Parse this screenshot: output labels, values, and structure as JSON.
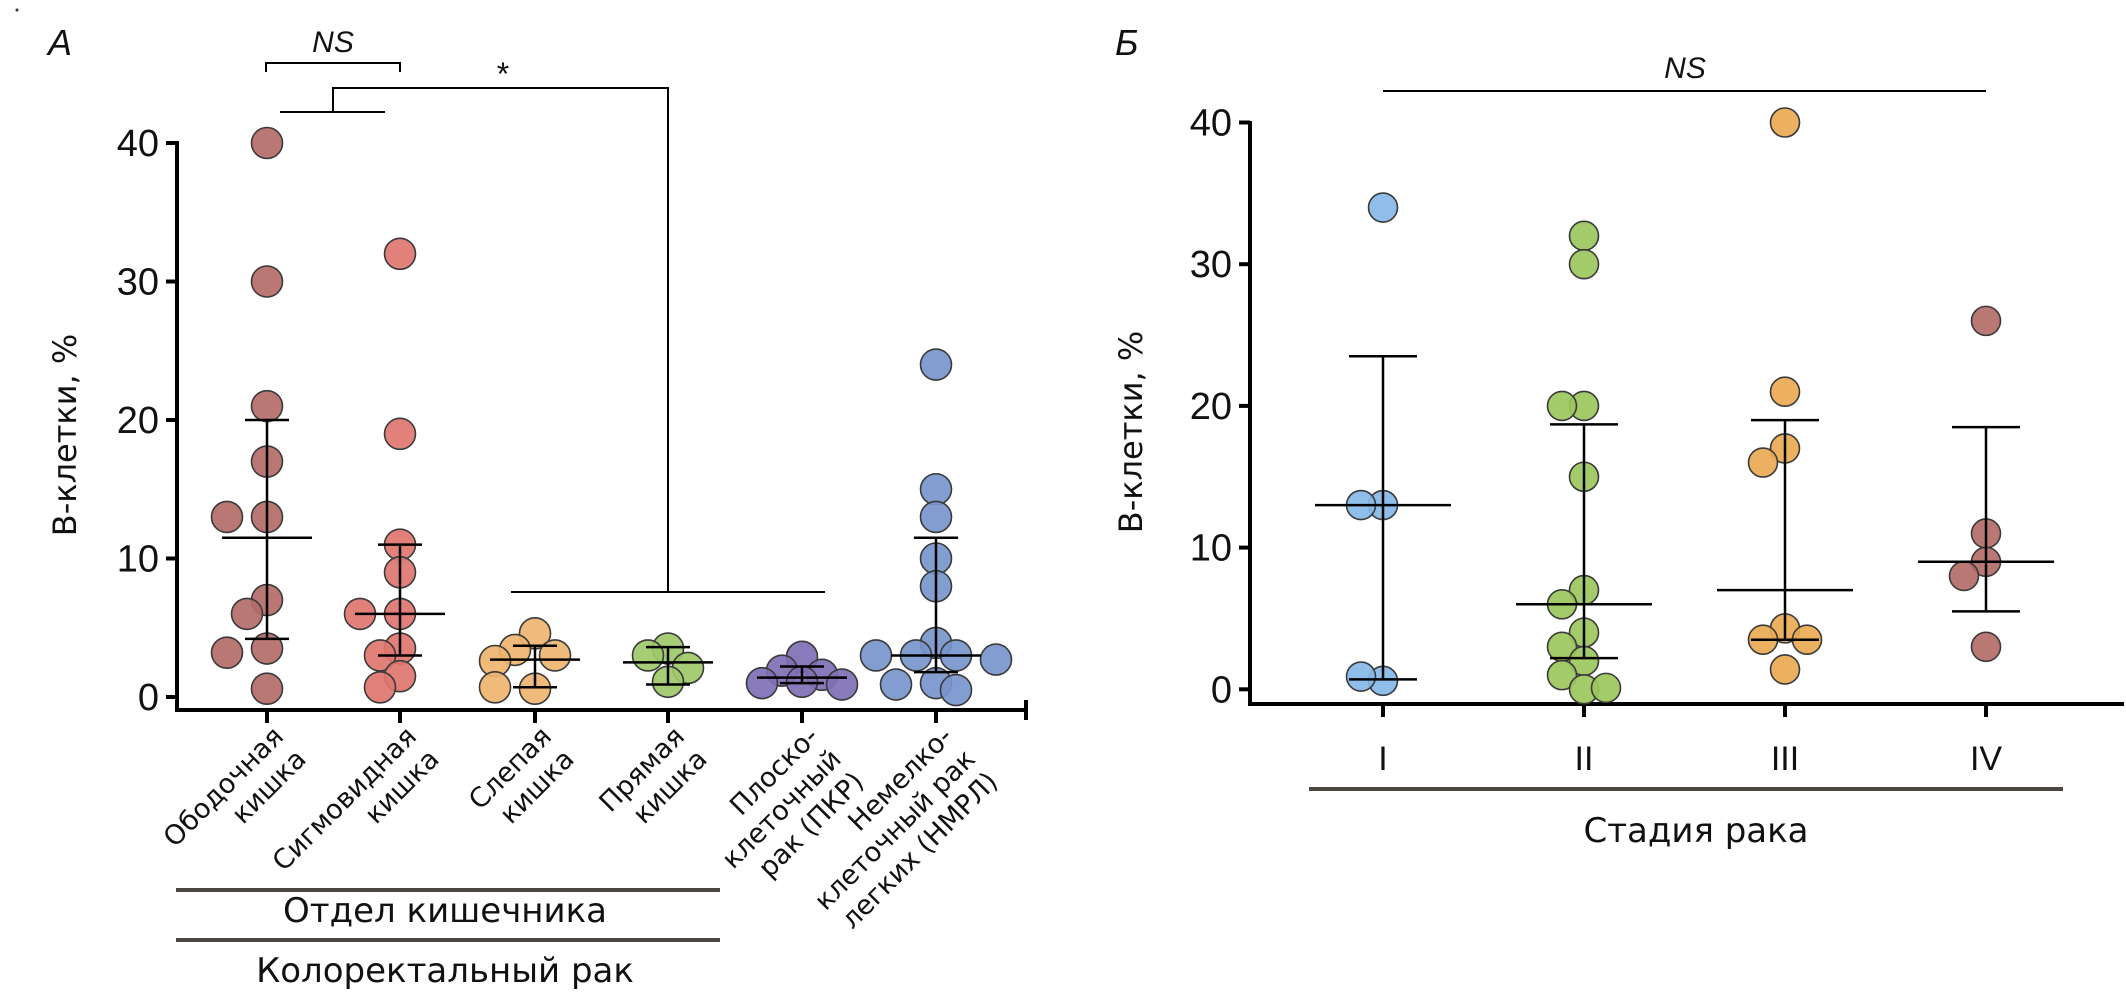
{
  "chart_data": [
    {
      "panel": "A",
      "type": "scatter",
      "ylabel": "B-клетки, %",
      "ylim": [
        0,
        40
      ],
      "yticks": [
        0,
        10,
        20,
        30,
        40
      ],
      "categories": [
        {
          "label_lines": [
            "Ободочная",
            "кишка"
          ],
          "color": "#b46c69"
        },
        {
          "label_lines": [
            "Сигмовидная",
            "кишка"
          ],
          "color": "#e0766f"
        },
        {
          "label_lines": [
            "Слепая",
            "кишка"
          ],
          "color": "#eeb46f"
        },
        {
          "label_lines": [
            "Прямая",
            "кишка"
          ],
          "color": "#9ec96a"
        },
        {
          "label_lines": [
            "Плоско-",
            "клеточный",
            "рак (ПКР)"
          ],
          "color": "#7f6fb5"
        },
        {
          "label_lines": [
            "Немелко-",
            "клеточный рак",
            "легких (НМРЛ)"
          ],
          "color": "#7795cc"
        }
      ],
      "series": [
        {
          "name": "Ободочная кишка",
          "values": [
            40,
            30,
            21,
            17,
            13,
            13,
            7,
            6,
            3.5,
            3.2,
            0.6
          ],
          "median": 11.5,
          "q1": 4.2,
          "q3": 20
        },
        {
          "name": "Сигмовидная кишка",
          "values": [
            32,
            19,
            11,
            9,
            6,
            6,
            3.5,
            3,
            1.5,
            0.7
          ],
          "median": 6,
          "q1": 3,
          "q3": 11
        },
        {
          "name": "Слепая кишка",
          "values": [
            4.6,
            3.4,
            3.0,
            2.6,
            0.6,
            0.7
          ],
          "median": 2.7,
          "q1": 0.7,
          "q3": 3.7
        },
        {
          "name": "Прямая кишка",
          "values": [
            3.5,
            3.0,
            2.1,
            1.1
          ],
          "median": 2.5,
          "q1": 0.9,
          "q3": 3.6
        },
        {
          "name": "Плоскоклеточный рак (ПКР)",
          "values": [
            2.9,
            1.9,
            1.6,
            1.1,
            1.0,
            0.9
          ],
          "median": 1.4,
          "q1": 1.0,
          "q3": 2.2
        },
        {
          "name": "Немелкоклеточный рак легких (НМРЛ)",
          "values": [
            24,
            15,
            13,
            10,
            8,
            3.9,
            3,
            3,
            3,
            2.7,
            1.0,
            0.9,
            0.5
          ],
          "median": 3,
          "q1": 1.8,
          "q3": 11.5
        }
      ],
      "group_titles": [
        "Отдел кишечника",
        "Колоректальный рак"
      ],
      "annotations": [
        {
          "text": "NS",
          "between": [
            "Ободочная кишка",
            "Сигмовидная кишка"
          ]
        },
        {
          "text": "*",
          "between": [
            "Ободочная + Сигмовидная кишка",
            "Слепая кишка … НМРЛ"
          ]
        }
      ]
    },
    {
      "panel": "Б",
      "type": "scatter",
      "ylabel": "B-клетки, %",
      "xlabel": "Стадия рака",
      "ylim": [
        0,
        40
      ],
      "yticks": [
        0,
        10,
        20,
        30,
        40
      ],
      "categories": [
        {
          "label": "I",
          "color": "#87b8e8"
        },
        {
          "label": "II",
          "color": "#9cc75c"
        },
        {
          "label": "III",
          "color": "#eaaa52"
        },
        {
          "label": "IV",
          "color": "#b46c69"
        }
      ],
      "series": [
        {
          "name": "I",
          "values": [
            34,
            13,
            13,
            0.6,
            0.9
          ],
          "median": 13,
          "q1": 0.7,
          "q3": 23.5
        },
        {
          "name": "II",
          "values": [
            32,
            30,
            20,
            20,
            15,
            7,
            6,
            4,
            3,
            2,
            1,
            0,
            0.1
          ],
          "median": 6,
          "q1": 2.2,
          "q3": 18.7
        },
        {
          "name": "III",
          "values": [
            40,
            21,
            17,
            16,
            4.3,
            3.5,
            3.5,
            1.4
          ],
          "median": 7,
          "q1": 3.5,
          "q3": 19
        },
        {
          "name": "IV",
          "values": [
            26,
            11,
            9,
            8,
            3
          ],
          "median": 9,
          "q1": 5.5,
          "q3": 18.5
        }
      ],
      "annotations": [
        {
          "text": "NS",
          "between": [
            "I",
            "IV"
          ]
        }
      ]
    }
  ],
  "labels": {
    "panel_a": "A",
    "panel_b": "Б",
    "ylabel": "B-клетки, %",
    "ns": "NS",
    "star": "*",
    "group_a1": "Отдел кишечника",
    "group_a2": "Колоректальный рак",
    "xlabel_b": "Стадия рака"
  }
}
